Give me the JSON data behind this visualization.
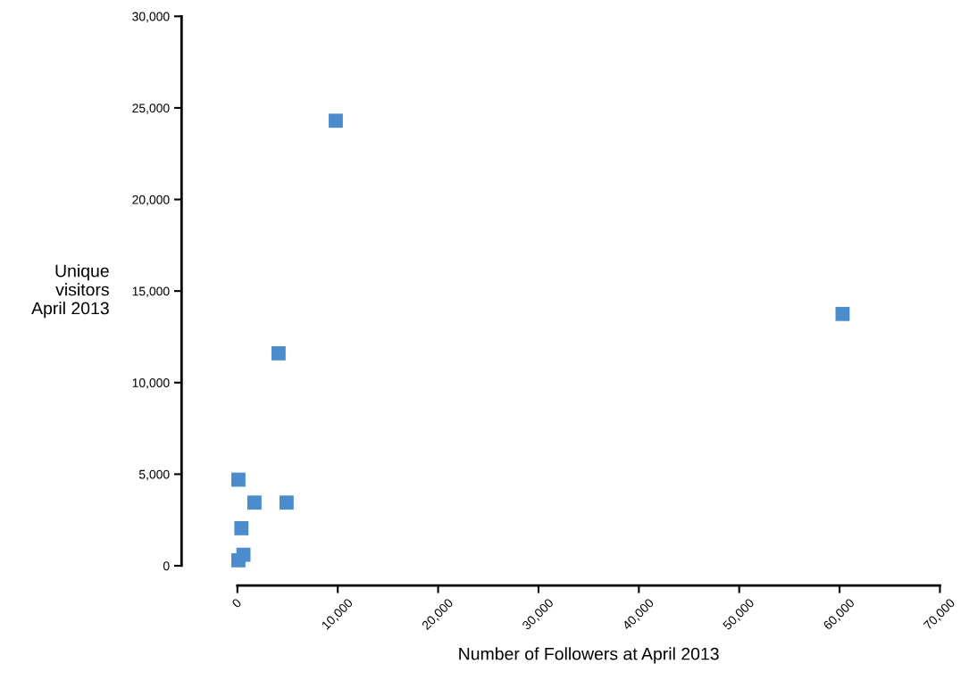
{
  "chart_data": {
    "type": "scatter",
    "xlabel": "Number of Followers at April 2013",
    "ylabel": "Unique\nvisitors\nApril 2013",
    "x": [
      9800,
      60300,
      4100,
      100,
      1700,
      4900,
      400,
      600,
      100
    ],
    "values": [
      24300,
      13750,
      11600,
      4700,
      3450,
      3450,
      2050,
      600,
      300
    ],
    "color": "#4a8ccc",
    "marker": "square",
    "grid": false,
    "legend": false,
    "xlim": [
      0,
      70000
    ],
    "ylim": [
      0,
      30000
    ],
    "xticks": [
      {
        "value": 0,
        "label": "0"
      },
      {
        "value": 10000,
        "label": "10,000"
      },
      {
        "value": 20000,
        "label": "20,000"
      },
      {
        "value": 30000,
        "label": "30,000"
      },
      {
        "value": 40000,
        "label": "40,000"
      },
      {
        "value": 50000,
        "label": "50,000"
      },
      {
        "value": 60000,
        "label": "60,000"
      },
      {
        "value": 70000,
        "label": "70,000"
      }
    ],
    "yticks": [
      {
        "value": 0,
        "label": "0"
      },
      {
        "value": 5000,
        "label": "5,000"
      },
      {
        "value": 10000,
        "label": "10,000"
      },
      {
        "value": 15000,
        "label": "15,000"
      },
      {
        "value": 20000,
        "label": "20,000"
      },
      {
        "value": 25000,
        "label": "25,000"
      },
      {
        "value": 30000,
        "label": "30,000"
      }
    ]
  }
}
